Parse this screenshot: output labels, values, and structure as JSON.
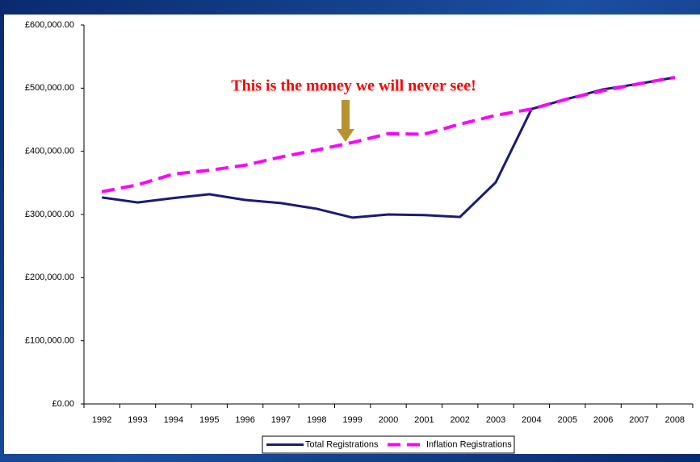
{
  "chart_data": {
    "type": "line",
    "annotation": "This is the money we will never see!",
    "categories": [
      "1992",
      "1993",
      "1994",
      "1995",
      "1996",
      "1997",
      "1998",
      "1999",
      "2000",
      "2001",
      "2002",
      "2003",
      "2004",
      "2005",
      "2006",
      "2007",
      "2008"
    ],
    "series": [
      {
        "name": "Total Registrations",
        "color": "#1a1a7a",
        "dashed": false,
        "values": [
          327000,
          319000,
          326000,
          332000,
          323000,
          318000,
          309000,
          295000,
          300000,
          299000,
          296000,
          351000,
          467000,
          483000,
          498000,
          507000,
          517000
        ]
      },
      {
        "name": "Inflation Registrations",
        "color": "#ff00ff",
        "dashed": true,
        "values": [
          336000,
          347000,
          364000,
          370000,
          378000,
          391000,
          402000,
          414000,
          428000,
          427000,
          443000,
          457000,
          467000,
          483000,
          496000,
          507000,
          517000
        ]
      }
    ],
    "ylim": [
      0,
      600000
    ],
    "yticks": [
      {
        "value": 0,
        "label": "£0.00"
      },
      {
        "value": 100000,
        "label": "£100,000.00"
      },
      {
        "value": 200000,
        "label": "£200,000.00"
      },
      {
        "value": 300000,
        "label": "£300,000.00"
      },
      {
        "value": 400000,
        "label": "£400,000.00"
      },
      {
        "value": 500000,
        "label": "£500,000.00"
      },
      {
        "value": 600000,
        "label": "£600,000.00"
      }
    ],
    "grid": false
  }
}
